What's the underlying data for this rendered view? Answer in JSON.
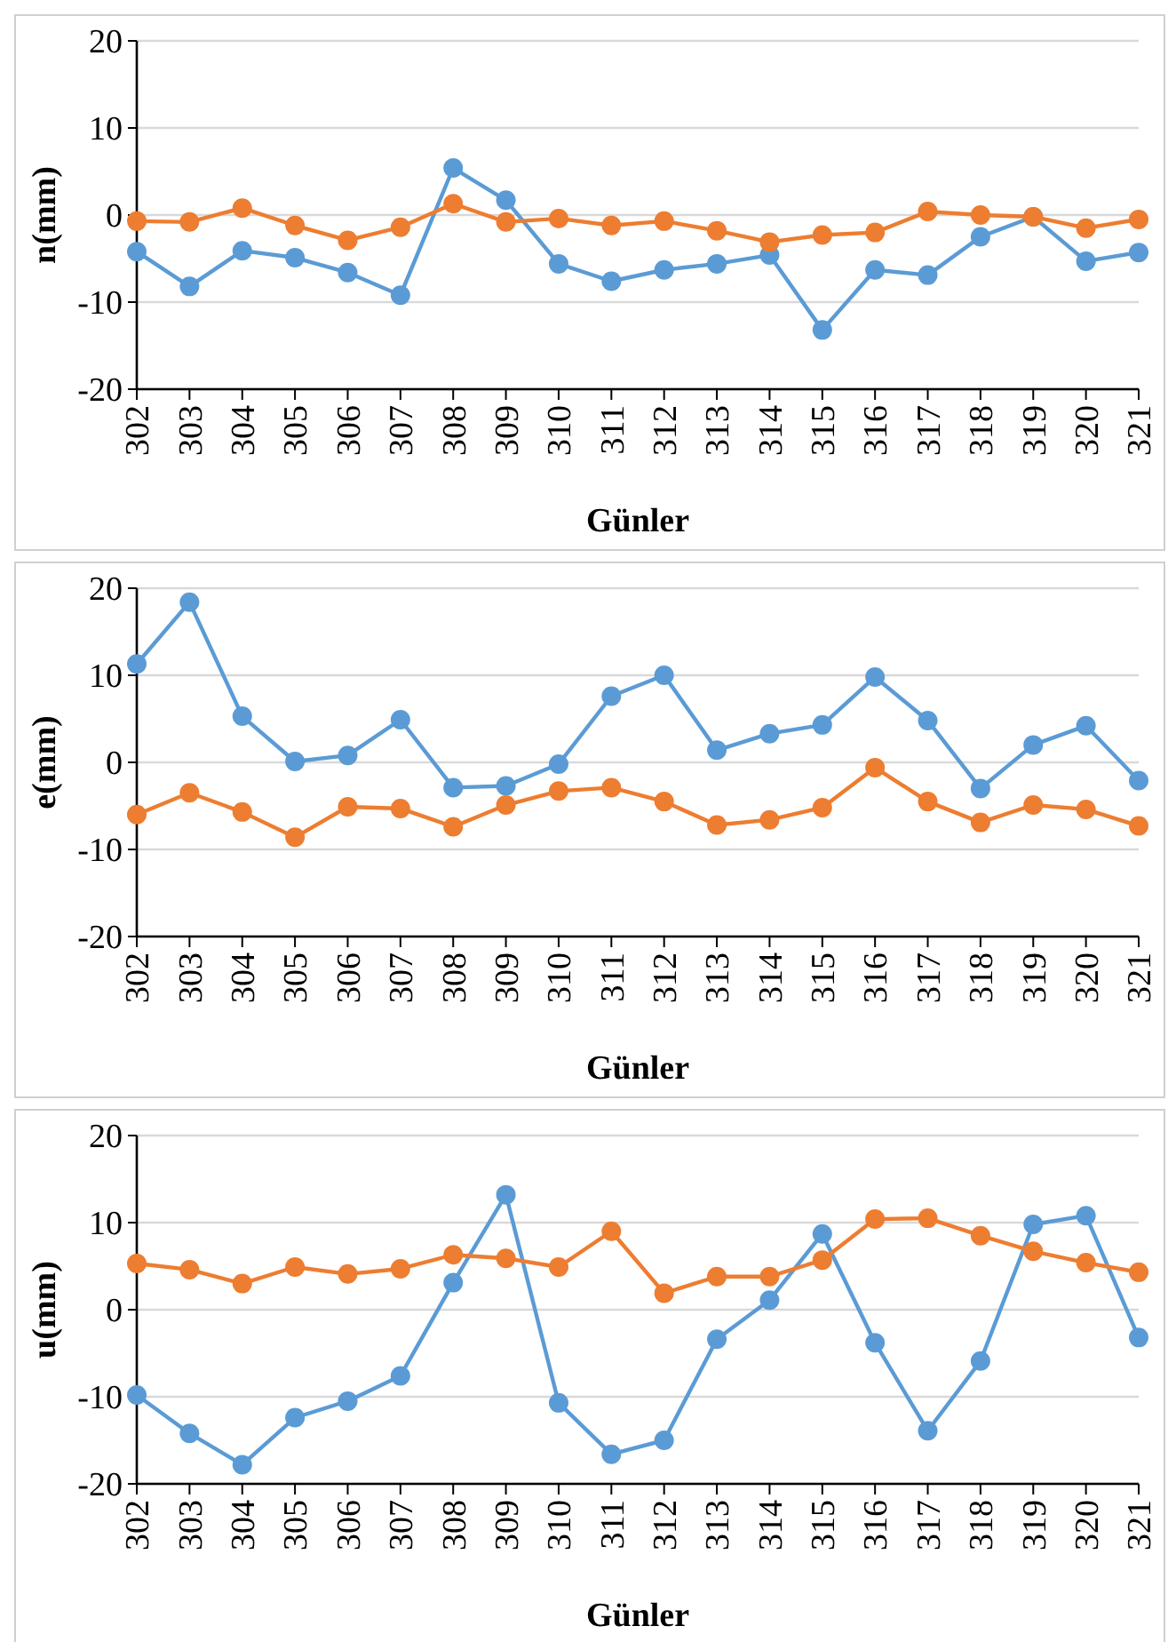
{
  "chart_data": [
    {
      "type": "line",
      "xlabel": "Günler",
      "ylabel": "n(mm)",
      "categories": [
        "302",
        "303",
        "304",
        "305",
        "306",
        "307",
        "308",
        "309",
        "310",
        "311",
        "312",
        "313",
        "314",
        "315",
        "316",
        "317",
        "318",
        "319",
        "320",
        "321"
      ],
      "ylim": [
        -20,
        20
      ],
      "yticks": [
        -20,
        -10,
        0,
        10,
        20
      ],
      "grid": "y",
      "marker": "circle",
      "series": [
        {
          "color": "#5b9bd5",
          "values": [
            -4.2,
            -8.2,
            -4.1,
            -4.9,
            -6.6,
            -9.2,
            5.4,
            1.7,
            -5.6,
            -7.6,
            -6.3,
            -5.6,
            -4.6,
            -13.2,
            -6.3,
            -6.9,
            -2.5,
            -0.2,
            -5.3,
            -4.3
          ]
        },
        {
          "color": "#ed7d31",
          "values": [
            -0.7,
            -0.8,
            0.8,
            -1.2,
            -2.9,
            -1.4,
            1.3,
            -0.8,
            -0.4,
            -1.2,
            -0.7,
            -1.8,
            -3.1,
            -2.3,
            -2.0,
            0.4,
            0.0,
            -0.2,
            -1.5,
            -0.5
          ]
        }
      ]
    },
    {
      "type": "line",
      "xlabel": "Günler",
      "ylabel": "e(mm)",
      "categories": [
        "302",
        "303",
        "304",
        "305",
        "306",
        "307",
        "308",
        "309",
        "310",
        "311",
        "312",
        "313",
        "314",
        "315",
        "316",
        "317",
        "318",
        "319",
        "320",
        "321"
      ],
      "ylim": [
        -20,
        20
      ],
      "yticks": [
        -20,
        -10,
        0,
        10,
        20
      ],
      "grid": "y",
      "marker": "circle",
      "series": [
        {
          "color": "#5b9bd5",
          "values": [
            11.3,
            18.4,
            5.3,
            0.1,
            0.8,
            4.9,
            -2.9,
            -2.7,
            -0.2,
            7.6,
            10.0,
            1.4,
            3.3,
            4.3,
            9.8,
            4.8,
            -3.0,
            2.0,
            4.2,
            -2.1
          ]
        },
        {
          "color": "#ed7d31",
          "values": [
            -6.0,
            -3.5,
            -5.7,
            -8.6,
            -5.1,
            -5.3,
            -7.4,
            -4.9,
            -3.3,
            -2.9,
            -4.5,
            -7.2,
            -6.6,
            -5.2,
            -0.6,
            -4.5,
            -6.9,
            -4.9,
            -5.4,
            -7.3
          ]
        }
      ]
    },
    {
      "type": "line",
      "xlabel": "Günler",
      "ylabel": "u(mm)",
      "categories": [
        "302",
        "303",
        "304",
        "305",
        "306",
        "307",
        "308",
        "309",
        "310",
        "311",
        "312",
        "313",
        "314",
        "315",
        "316",
        "317",
        "318",
        "319",
        "320",
        "321"
      ],
      "ylim": [
        -20,
        20
      ],
      "yticks": [
        -20,
        -10,
        0,
        10,
        20
      ],
      "grid": "y",
      "marker": "circle",
      "series": [
        {
          "color": "#5b9bd5",
          "values": [
            -9.8,
            -14.2,
            -17.8,
            -12.4,
            -10.5,
            -7.6,
            3.1,
            13.2,
            -10.7,
            -16.6,
            -15.0,
            -3.4,
            1.1,
            8.7,
            -3.8,
            -13.9,
            -5.9,
            9.8,
            10.8,
            -3.2
          ]
        },
        {
          "color": "#ed7d31",
          "values": [
            5.3,
            4.6,
            3.0,
            4.9,
            4.1,
            4.7,
            6.3,
            5.9,
            4.9,
            9.0,
            1.9,
            3.8,
            3.8,
            5.7,
            10.4,
            10.5,
            8.5,
            6.7,
            5.4,
            4.3
          ]
        }
      ]
    }
  ]
}
